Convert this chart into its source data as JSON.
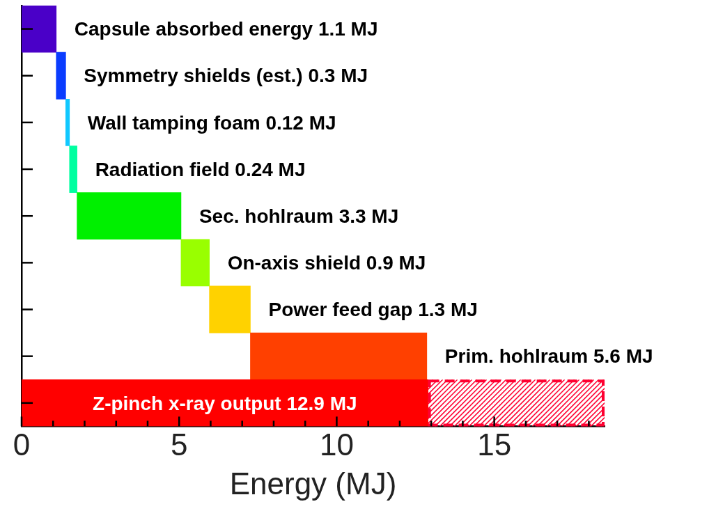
{
  "chart_data": {
    "type": "bar",
    "orientation": "horizontal",
    "xlabel": "Energy (MJ)",
    "categories": [
      null,
      null,
      null,
      null,
      null,
      null,
      null,
      null,
      null
    ],
    "series": [
      {
        "values": [
          1.1,
          0.3,
          0.12,
          0.24,
          3.3,
          0.9,
          1.3,
          5.6,
          12.9
        ],
        "base": [
          0,
          1.1,
          1.4,
          1.52,
          1.76,
          5.06,
          5.96,
          7.26,
          0
        ],
        "colors": [
          "#4a00c8",
          "#0a3cff",
          "#10c8ff",
          "#00ffa0",
          "#00f000",
          "#99ff00",
          "#ffd200",
          "#ff4000",
          "#ff0000"
        ],
        "value_labels": [
          "Capsule absorbed energy 1.1 MJ",
          "Symmetry shields (est.) 0.3 MJ",
          "Wall tamping foam 0.12 MJ",
          "Radiation field 0.24 MJ",
          "Sec. hohlraum 3.3 MJ",
          "On-axis shield 0.9 MJ",
          "Power feed gap 1.3 MJ",
          "Prim. hohlraum 5.6 MJ",
          "Z-pinch x-ray output 12.9 MJ"
        ]
      },
      {
        "values": [
          null,
          null,
          null,
          null,
          null,
          null,
          null,
          null,
          5.6
        ],
        "base": [
          null,
          null,
          null,
          null,
          null,
          null,
          null,
          null,
          12.9
        ],
        "color": "#ff0030",
        "line_style": "dashed"
      }
    ],
    "xlim": [
      0,
      18.5
    ],
    "xticks": [
      0,
      {
        "value": 1,
        "label": null
      },
      {
        "value": 2,
        "label": null
      },
      {
        "value": 3,
        "label": null
      },
      {
        "value": 4,
        "label": null
      },
      5,
      {
        "value": 6,
        "label": null
      },
      {
        "value": 7,
        "label": null
      },
      {
        "value": 8,
        "label": null
      },
      {
        "value": 9,
        "label": null
      },
      10,
      {
        "value": 11,
        "label": null
      },
      {
        "value": 12,
        "label": null
      },
      {
        "value": 13,
        "label": null
      },
      {
        "value": 14,
        "label": null
      },
      15,
      {
        "value": 16,
        "label": null
      },
      {
        "value": 17,
        "label": null
      },
      {
        "value": 18,
        "label": null
      }
    ],
    "tick_labels": "x",
    "grid": false,
    "legend": false
  }
}
